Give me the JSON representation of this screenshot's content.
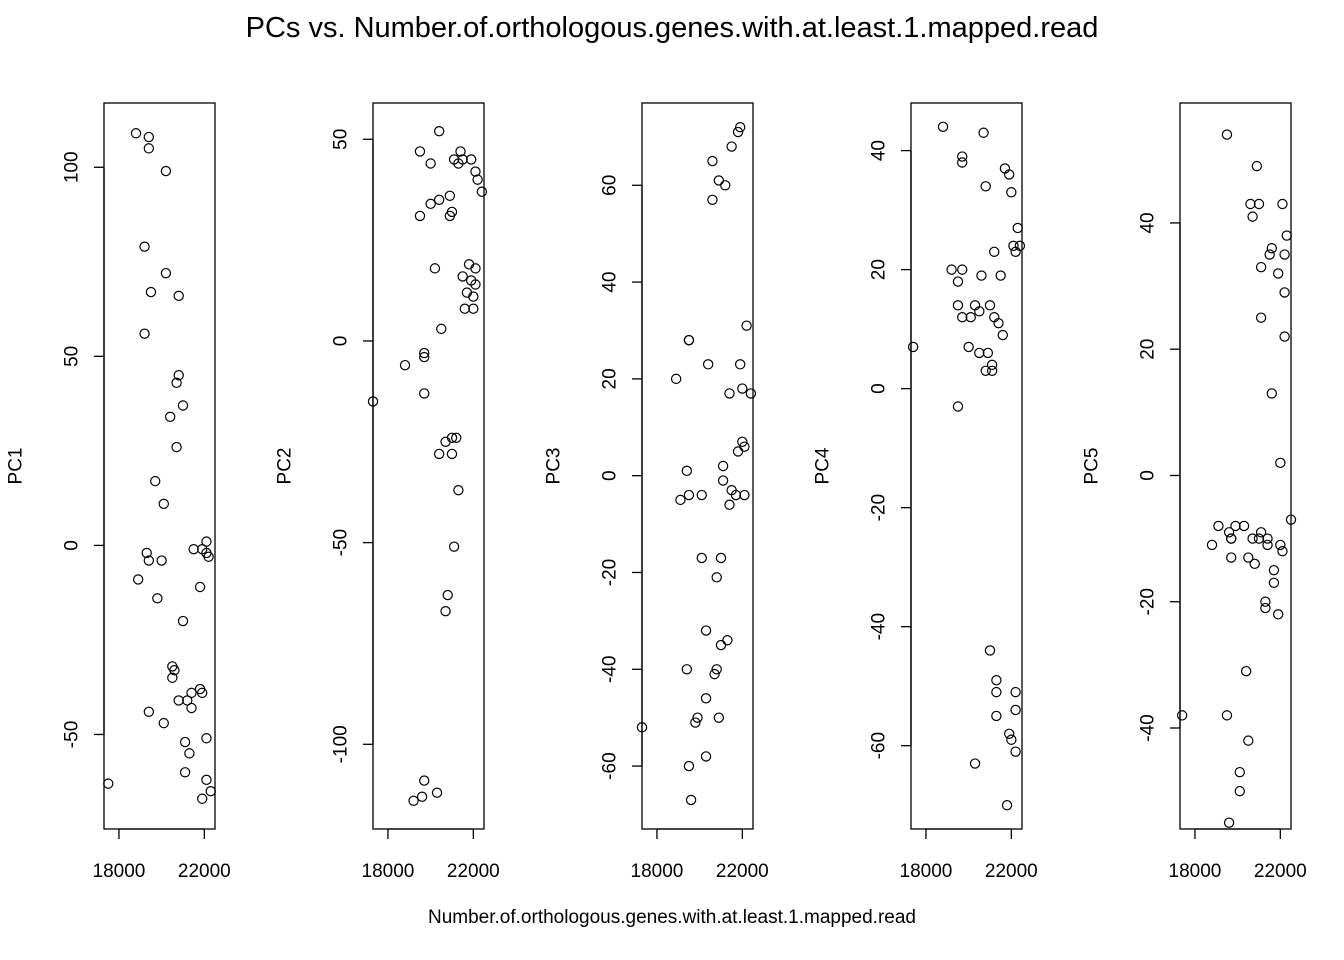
{
  "title": "PCs vs. Number.of.orthologous.genes.with.at.least.1.mapped.read",
  "xlabel": "Number.of.orthologous.genes.with.at.least.1.mapped.read",
  "chart_data": [
    {
      "type": "scatter",
      "ylabel": "PC1",
      "xlim": [
        17300,
        22500
      ],
      "ylim": [
        -75,
        117
      ],
      "xticks": [
        18000,
        22000
      ],
      "xtick_labels": [
        "18000",
        "22000"
      ],
      "yticks": [
        -50,
        0,
        50,
        100
      ],
      "ytick_labels": [
        "-50",
        "0",
        "50",
        "100"
      ],
      "points": [
        [
          17500,
          -63
        ],
        [
          18800,
          109
        ],
        [
          19400,
          108
        ],
        [
          19400,
          105
        ],
        [
          20200,
          99
        ],
        [
          19200,
          79
        ],
        [
          20200,
          72
        ],
        [
          19500,
          67
        ],
        [
          20800,
          66
        ],
        [
          19200,
          56
        ],
        [
          20800,
          45
        ],
        [
          20700,
          43
        ],
        [
          21000,
          37
        ],
        [
          20400,
          34
        ],
        [
          20700,
          26
        ],
        [
          19700,
          17
        ],
        [
          20100,
          11
        ],
        [
          19300,
          -2
        ],
        [
          20000,
          -4
        ],
        [
          19400,
          -4
        ],
        [
          18900,
          -9
        ],
        [
          19800,
          -14
        ],
        [
          21000,
          -20
        ],
        [
          21900,
          -1
        ],
        [
          22100,
          -2
        ],
        [
          22200,
          -3
        ],
        [
          22100,
          1
        ],
        [
          21800,
          -11
        ],
        [
          21500,
          -1
        ],
        [
          20500,
          -32
        ],
        [
          20600,
          -33
        ],
        [
          20500,
          -35
        ],
        [
          20800,
          -41
        ],
        [
          21200,
          -41
        ],
        [
          21400,
          -39
        ],
        [
          21800,
          -38
        ],
        [
          21900,
          -39
        ],
        [
          21400,
          -43
        ],
        [
          19400,
          -44
        ],
        [
          20100,
          -47
        ],
        [
          21100,
          -52
        ],
        [
          21300,
          -55
        ],
        [
          22100,
          -51
        ],
        [
          21100,
          -60
        ],
        [
          21900,
          -67
        ],
        [
          22100,
          -62
        ],
        [
          22300,
          -65
        ]
      ]
    },
    {
      "type": "scatter",
      "ylabel": "PC2",
      "xlim": [
        17300,
        22500
      ],
      "ylim": [
        -121,
        59
      ],
      "xticks": [
        18000,
        22000
      ],
      "xtick_labels": [
        "18000",
        "22000"
      ],
      "yticks": [
        -100,
        -50,
        0,
        50
      ],
      "ytick_labels": [
        "-100",
        "-50",
        "0",
        "50"
      ],
      "points": [
        [
          17300,
          -15
        ],
        [
          18800,
          -6
        ],
        [
          19200,
          -114
        ],
        [
          19600,
          -113
        ],
        [
          19700,
          -109
        ],
        [
          20300,
          -112
        ],
        [
          19500,
          47
        ],
        [
          20400,
          52
        ],
        [
          20000,
          44
        ],
        [
          21100,
          45
        ],
        [
          21300,
          44
        ],
        [
          21400,
          47
        ],
        [
          21500,
          45
        ],
        [
          21900,
          45
        ],
        [
          22100,
          42
        ],
        [
          22200,
          40
        ],
        [
          22400,
          37
        ],
        [
          20900,
          36
        ],
        [
          20400,
          35
        ],
        [
          20000,
          34
        ],
        [
          21000,
          32
        ],
        [
          19500,
          31
        ],
        [
          20900,
          31
        ],
        [
          20200,
          18
        ],
        [
          21800,
          19
        ],
        [
          22100,
          18
        ],
        [
          21500,
          16
        ],
        [
          21900,
          15
        ],
        [
          22100,
          14
        ],
        [
          21700,
          12
        ],
        [
          22000,
          11
        ],
        [
          22000,
          8
        ],
        [
          21600,
          8
        ],
        [
          20500,
          3
        ],
        [
          19700,
          -3
        ],
        [
          19700,
          -4
        ],
        [
          19700,
          -13
        ],
        [
          21000,
          -24
        ],
        [
          21200,
          -24
        ],
        [
          20700,
          -25
        ],
        [
          20400,
          -28
        ],
        [
          21000,
          -28
        ],
        [
          21300,
          -37
        ],
        [
          21100,
          -51
        ],
        [
          20800,
          -63
        ],
        [
          20700,
          -67
        ]
      ]
    },
    {
      "type": "scatter",
      "ylabel": "PC3",
      "xlim": [
        17300,
        22500
      ],
      "ylim": [
        -73,
        77
      ],
      "xticks": [
        18000,
        22000
      ],
      "xtick_labels": [
        "18000",
        "22000"
      ],
      "yticks": [
        -60,
        -40,
        -20,
        0,
        20,
        40,
        60
      ],
      "ytick_labels": [
        "-60",
        "-40",
        "-20",
        "0",
        "20",
        "40",
        "60"
      ],
      "points": [
        [
          17300,
          -52
        ],
        [
          18900,
          20
        ],
        [
          19100,
          -5
        ],
        [
          19400,
          1
        ],
        [
          19500,
          28
        ],
        [
          19500,
          28
        ],
        [
          19500,
          -4
        ],
        [
          19400,
          -40
        ],
        [
          19500,
          -60
        ],
        [
          19600,
          -67
        ],
        [
          19800,
          -51
        ],
        [
          19900,
          -50
        ],
        [
          20100,
          -17
        ],
        [
          20100,
          -4
        ],
        [
          20300,
          -32
        ],
        [
          20300,
          -46
        ],
        [
          20300,
          -58
        ],
        [
          20400,
          23
        ],
        [
          20600,
          57
        ],
        [
          20600,
          65
        ],
        [
          20700,
          -41
        ],
        [
          20800,
          -40
        ],
        [
          20800,
          -21
        ],
        [
          20900,
          -50
        ],
        [
          20900,
          61
        ],
        [
          21000,
          -35
        ],
        [
          21000,
          -17
        ],
        [
          21100,
          -1
        ],
        [
          21100,
          2
        ],
        [
          21200,
          60
        ],
        [
          21300,
          -34
        ],
        [
          21400,
          -6
        ],
        [
          21400,
          17
        ],
        [
          21500,
          -3
        ],
        [
          21500,
          68
        ],
        [
          21700,
          -4
        ],
        [
          21800,
          71
        ],
        [
          21900,
          72
        ],
        [
          21800,
          5
        ],
        [
          21900,
          23
        ],
        [
          22000,
          7
        ],
        [
          22000,
          18
        ],
        [
          22100,
          6
        ],
        [
          22100,
          -4
        ],
        [
          22200,
          31
        ],
        [
          22400,
          17
        ]
      ]
    },
    {
      "type": "scatter",
      "ylabel": "PC4",
      "xlim": [
        17300,
        22500
      ],
      "ylim": [
        -74,
        48
      ],
      "xticks": [
        18000,
        22000
      ],
      "xtick_labels": [
        "18000",
        "22000"
      ],
      "yticks": [
        -60,
        -40,
        -20,
        0,
        20,
        40
      ],
      "ytick_labels": [
        "-60",
        "-40",
        "-20",
        "0",
        "20",
        "40"
      ],
      "points": [
        [
          17400,
          7
        ],
        [
          18800,
          44
        ],
        [
          19200,
          20
        ],
        [
          19500,
          18
        ],
        [
          19500,
          14
        ],
        [
          19500,
          -3
        ],
        [
          19700,
          39
        ],
        [
          19700,
          38
        ],
        [
          19700,
          20
        ],
        [
          19700,
          12
        ],
        [
          20000,
          7
        ],
        [
          20100,
          12
        ],
        [
          20300,
          14
        ],
        [
          20300,
          -63
        ],
        [
          20500,
          13
        ],
        [
          20500,
          6
        ],
        [
          20600,
          19
        ],
        [
          20700,
          43
        ],
        [
          20800,
          34
        ],
        [
          20800,
          3
        ],
        [
          20900,
          6
        ],
        [
          21000,
          14
        ],
        [
          21000,
          -44
        ],
        [
          21100,
          4
        ],
        [
          21100,
          3
        ],
        [
          21200,
          23
        ],
        [
          21200,
          12
        ],
        [
          21300,
          -49
        ],
        [
          21300,
          -51
        ],
        [
          21300,
          -55
        ],
        [
          21400,
          11
        ],
        [
          21500,
          19
        ],
        [
          21600,
          9
        ],
        [
          21700,
          37
        ],
        [
          21800,
          -70
        ],
        [
          21900,
          -58
        ],
        [
          21900,
          36
        ],
        [
          22000,
          -59
        ],
        [
          22000,
          33
        ],
        [
          22100,
          24
        ],
        [
          22200,
          23
        ],
        [
          22200,
          -51
        ],
        [
          22200,
          -54
        ],
        [
          22200,
          -61
        ],
        [
          22300,
          27
        ],
        [
          22400,
          24
        ]
      ]
    },
    {
      "type": "scatter",
      "ylabel": "PC5",
      "xlim": [
        17300,
        22500
      ],
      "ylim": [
        -56,
        59
      ],
      "xticks": [
        18000,
        22000
      ],
      "xtick_labels": [
        "18000",
        "22000"
      ],
      "yticks": [
        -40,
        -20,
        0,
        20,
        40
      ],
      "ytick_labels": [
        "-40",
        "-20",
        "0",
        "20",
        "40"
      ],
      "points": [
        [
          17400,
          -38
        ],
        [
          18800,
          -11
        ],
        [
          19100,
          -8
        ],
        [
          19500,
          -38
        ],
        [
          19600,
          -9
        ],
        [
          19700,
          -10
        ],
        [
          19700,
          -10
        ],
        [
          19700,
          -13
        ],
        [
          19500,
          54
        ],
        [
          19600,
          -55
        ],
        [
          19900,
          -8
        ],
        [
          20100,
          -50
        ],
        [
          20100,
          -47
        ],
        [
          20300,
          -8
        ],
        [
          20400,
          -31
        ],
        [
          20500,
          -42
        ],
        [
          20500,
          -13
        ],
        [
          20600,
          43
        ],
        [
          20700,
          41
        ],
        [
          20700,
          -10
        ],
        [
          20800,
          -14
        ],
        [
          20900,
          49
        ],
        [
          21000,
          43
        ],
        [
          21000,
          -10
        ],
        [
          21100,
          33
        ],
        [
          21100,
          25
        ],
        [
          21100,
          -9
        ],
        [
          21300,
          -21
        ],
        [
          21300,
          -20
        ],
        [
          21400,
          -11
        ],
        [
          21400,
          -10
        ],
        [
          21500,
          35
        ],
        [
          21600,
          13
        ],
        [
          21600,
          36
        ],
        [
          21700,
          -17
        ],
        [
          21700,
          -15
        ],
        [
          21900,
          -22
        ],
        [
          21900,
          32
        ],
        [
          22000,
          -11
        ],
        [
          22000,
          2
        ],
        [
          22100,
          -12
        ],
        [
          22100,
          43
        ],
        [
          22200,
          22
        ],
        [
          22200,
          29
        ],
        [
          22200,
          35
        ],
        [
          22300,
          38
        ],
        [
          22500,
          -7
        ]
      ]
    }
  ]
}
